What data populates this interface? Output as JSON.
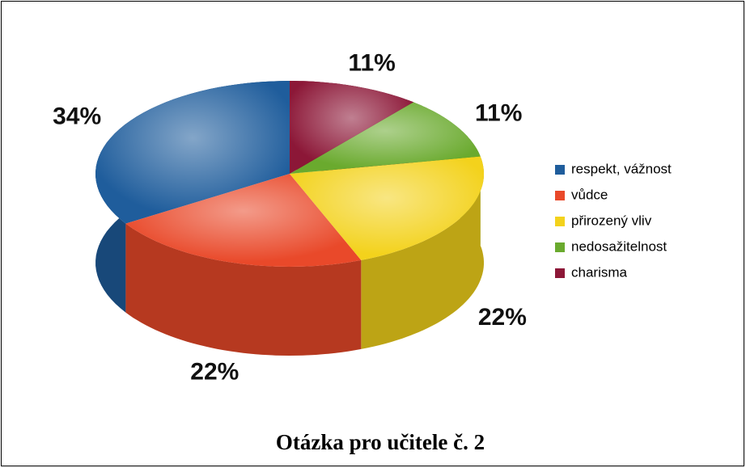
{
  "chart_data": {
    "type": "pie3d",
    "title": "Otázka pro učitele č. 2",
    "categories": [
      "respekt, vážnost",
      "vůdce",
      "přirozený vliv",
      "nedosažitelnost",
      "charisma"
    ],
    "values": [
      34,
      22,
      22,
      11,
      11
    ],
    "value_labels": [
      "34%",
      "22%",
      "22%",
      "11%",
      "11%"
    ],
    "colors": [
      "#1f5d9c",
      "#e9492a",
      "#f3d21c",
      "#6aaa2e",
      "#8c1737"
    ],
    "legend": "right"
  }
}
